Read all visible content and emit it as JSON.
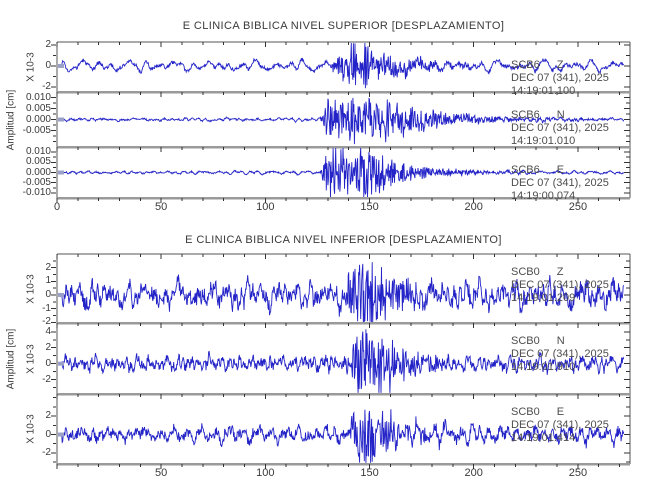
{
  "style": {
    "background": "#ffffff",
    "trace_color": "#2323c8",
    "axis_color": "#555555",
    "divider_color": "#9a9a9a",
    "tick_color": "#333333",
    "text_color": "#3a3a3a",
    "station_text_color": "#4d4d4d",
    "start_marker_color": "#9aa0c8"
  },
  "chart_data": [
    {
      "type": "line",
      "title": "E CLINICA BIBLICA NIVEL SUPERIOR [DESPLAZAMIENTO]",
      "ylabel": "Amplitud [cm]",
      "xlim": [
        0,
        275
      ],
      "x_minor_step": 10,
      "x_labels": [
        {
          "v": 0,
          "label": "0"
        },
        {
          "v": 50,
          "label": "50"
        },
        {
          "v": 100,
          "label": "100"
        },
        {
          "v": 150,
          "label": "150"
        },
        {
          "v": 200,
          "label": "200"
        },
        {
          "v": 250,
          "label": "250"
        }
      ],
      "traces": [
        {
          "station": "SCB6",
          "component": "Z",
          "date": "DEC 07 (341), 2025",
          "time": "14:19:01.100",
          "scale_label": "X 10-3",
          "ylim": [
            -2.5,
            2.3
          ],
          "yticks": [
            {
              "v": 2,
              "label": "2"
            },
            {
              "v": 0,
              "label": "0"
            },
            {
              "v": -2,
              "label": "-2"
            }
          ],
          "y_minor": [
            1,
            -1
          ],
          "noise_amp": 0.5,
          "noise_freq_max": 0.28,
          "jitter": 0.35,
          "event": {
            "start": 130,
            "ramp": 12,
            "peak": 147,
            "end": 206,
            "amp": 2.4
          },
          "seed": 3
        },
        {
          "station": "SCB6",
          "component": "N",
          "date": "DEC 07 (341), 2025",
          "time": "14:19:01.010",
          "scale_label": "",
          "ylim": [
            -0.0125,
            0.0125
          ],
          "yticks": [
            {
              "v": 0.01,
              "label": "0.010"
            },
            {
              "v": 0.005,
              "label": "0.005"
            },
            {
              "v": 0.0,
              "label": "0.000"
            },
            {
              "v": -0.005,
              "label": "-0.005"
            }
          ],
          "y_minor": [
            0.0075,
            0.0025,
            -0.0025,
            -0.0075,
            -0.01
          ],
          "noise_amp": 0.0007,
          "noise_freq_max": 0.35,
          "jitter": 0.5,
          "event": {
            "start": 126,
            "ramp": 4,
            "peak": 155,
            "end": 238,
            "amp": 0.011
          },
          "seed": 5
        },
        {
          "station": "SCB6",
          "component": "E",
          "date": "DEC 07 (341), 2025",
          "time": "14:19:00.074",
          "scale_label": "",
          "ylim": [
            -0.0125,
            0.0125
          ],
          "yticks": [
            {
              "v": 0.01,
              "label": "0.010"
            },
            {
              "v": 0.005,
              "label": "0.005"
            },
            {
              "v": 0.0,
              "label": "0.000"
            },
            {
              "v": -0.005,
              "label": "-0.005"
            },
            {
              "v": -0.01,
              "label": "-0.010"
            }
          ],
          "y_minor": [
            0.0075,
            0.0025,
            -0.0025,
            -0.0075
          ],
          "noise_amp": 0.0007,
          "noise_freq_max": 0.35,
          "jitter": 0.5,
          "event": {
            "start": 126,
            "ramp": 4,
            "peak": 150,
            "end": 210,
            "amp": 0.013
          },
          "seed": 8
        }
      ]
    },
    {
      "type": "line",
      "title": "E CLINICA BIBLICA NIVEL INFERIOR [DESPLAZAMIENTO]",
      "ylabel": "Amplitud [cm]",
      "xlim": [
        0,
        275
      ],
      "x_minor_step": 10,
      "x_labels": [
        {
          "v": 50,
          "label": "50"
        },
        {
          "v": 100,
          "label": "100"
        },
        {
          "v": 150,
          "label": "150"
        },
        {
          "v": 200,
          "label": "200"
        },
        {
          "v": 250,
          "label": "250"
        }
      ],
      "traces": [
        {
          "station": "SCB0",
          "component": "Z",
          "date": "DEC 07 (341), 2025",
          "time": "14:19:01.209",
          "scale_label": "X 10-3",
          "ylim": [
            -2.05,
            3.0
          ],
          "yticks": [
            {
              "v": 2,
              "label": "2"
            },
            {
              "v": 1,
              "label": "1"
            },
            {
              "v": 0,
              "label": "0"
            },
            {
              "v": -1,
              "label": "-1"
            },
            {
              "v": -2,
              "label": "-2"
            }
          ],
          "y_minor": [
            2.5,
            1.5,
            0.5,
            -0.5,
            -1.5
          ],
          "noise_amp": 0.8,
          "noise_freq_max": 0.55,
          "jitter": 0.7,
          "event": {
            "start": 137,
            "ramp": 7,
            "peak": 150,
            "end": 198,
            "amp": 2.8
          },
          "seed": 12
        },
        {
          "station": "SCB0",
          "component": "N",
          "date": "DEC 07 (341), 2025",
          "time": "14:19:01.910",
          "scale_label": "X 10-3",
          "ylim": [
            -3.8,
            5.1
          ],
          "yticks": [
            {
              "v": 4,
              "label": "4"
            },
            {
              "v": 2,
              "label": "2"
            },
            {
              "v": 0,
              "label": "0"
            },
            {
              "v": -2,
              "label": "-2"
            }
          ],
          "y_minor": [
            5,
            3,
            1,
            -1,
            -3
          ],
          "noise_amp": 0.8,
          "noise_freq_max": 0.55,
          "jitter": 0.7,
          "event": {
            "start": 138,
            "ramp": 8,
            "peak": 152,
            "end": 206,
            "amp": 4.6
          },
          "seed": 17
        },
        {
          "station": "SCB0",
          "component": "E",
          "date": "DEC 07 (341), 2025",
          "time": "14:19:01.414",
          "scale_label": "X 10-3",
          "ylim": [
            -3.2,
            4.4
          ],
          "yticks": [
            {
              "v": 2,
              "label": "2"
            },
            {
              "v": 0,
              "label": "0"
            },
            {
              "v": -2,
              "label": "-2"
            }
          ],
          "y_minor": [
            4,
            3,
            1,
            -1,
            -3
          ],
          "noise_amp": 0.8,
          "noise_freq_max": 0.55,
          "jitter": 0.7,
          "event": {
            "start": 139,
            "ramp": 5,
            "peak": 148,
            "end": 198,
            "amp": 4.0
          },
          "seed": 21
        }
      ]
    }
  ]
}
